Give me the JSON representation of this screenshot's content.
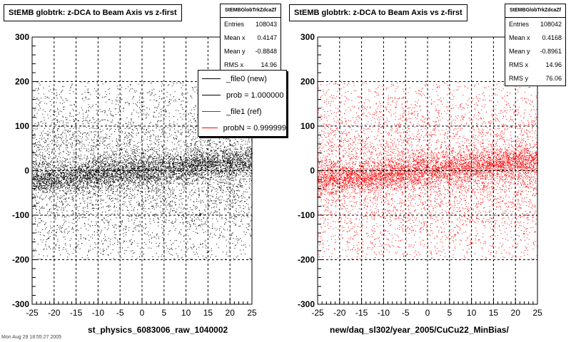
{
  "chart_data": [
    {
      "type": "scatter",
      "title": "StEMB globtrk: z-DCA to Beam Axis vs z-first",
      "xlabel": "st_physics_6083006_raw_1040002",
      "ylabel": "",
      "xlim": [
        -25,
        25
      ],
      "ylim": [
        -300,
        300
      ],
      "xticks": [
        "-25",
        "-20",
        "-15",
        "-10",
        "-5",
        "0",
        "5",
        "10",
        "15",
        "20",
        "25"
      ],
      "yticks": [
        "-300",
        "-200",
        "-100",
        "0",
        "100",
        "200",
        "300"
      ],
      "grid": true,
      "series": [
        {
          "name": "_file0 (new)",
          "color": "#000000"
        }
      ],
      "stats": {
        "header": "StEMBGlobTrkZdcaZf",
        "rows": [
          {
            "label": "Entries",
            "value": "108043"
          },
          {
            "label": "Mean x",
            "value": "0.4147"
          },
          {
            "label": "Mean y",
            "value": "-0.8848"
          },
          {
            "label": "RMS x",
            "value": "14.96"
          }
        ]
      },
      "legend": {
        "placement": "top-right",
        "entries": [
          {
            "label": "_file0 (new)",
            "color": "#000000"
          },
          {
            "label": "prob = 1.000000",
            "color": "#000000"
          },
          {
            "label": "_file1 (ref)",
            "color": "#ff0000"
          },
          {
            "label": "probN = 0.999999",
            "color": "#ff0000"
          }
        ]
      }
    },
    {
      "type": "scatter",
      "title": "StEMB globtrk: z-DCA to Beam Axis vs z-first",
      "xlabel": "new/daq_sl302/year_2005/CuCu22_MinBias/",
      "ylabel": "",
      "xlim": [
        -25,
        25
      ],
      "ylim": [
        -300,
        300
      ],
      "xticks": [
        "-25",
        "-20",
        "-15",
        "-10",
        "-5",
        "0",
        "5",
        "10",
        "15",
        "20",
        "25"
      ],
      "yticks": [
        "-300",
        "-200",
        "-100",
        "0",
        "100",
        "200",
        "300"
      ],
      "grid": true,
      "series": [
        {
          "name": "_file1 (ref)",
          "color": "#ff0000"
        }
      ],
      "stats": {
        "header": "StEMBGlobTrkZdcaZf",
        "rows": [
          {
            "label": "Entries",
            "value": "108042"
          },
          {
            "label": "Mean x",
            "value": "0.4168"
          },
          {
            "label": "Mean y",
            "value": "-0.8961"
          },
          {
            "label": "RMS x",
            "value": "14.96"
          },
          {
            "label": "RMS y",
            "value": "76.06"
          }
        ]
      }
    }
  ],
  "footer_note": "Mon Aug 29 18:55:27 2005"
}
